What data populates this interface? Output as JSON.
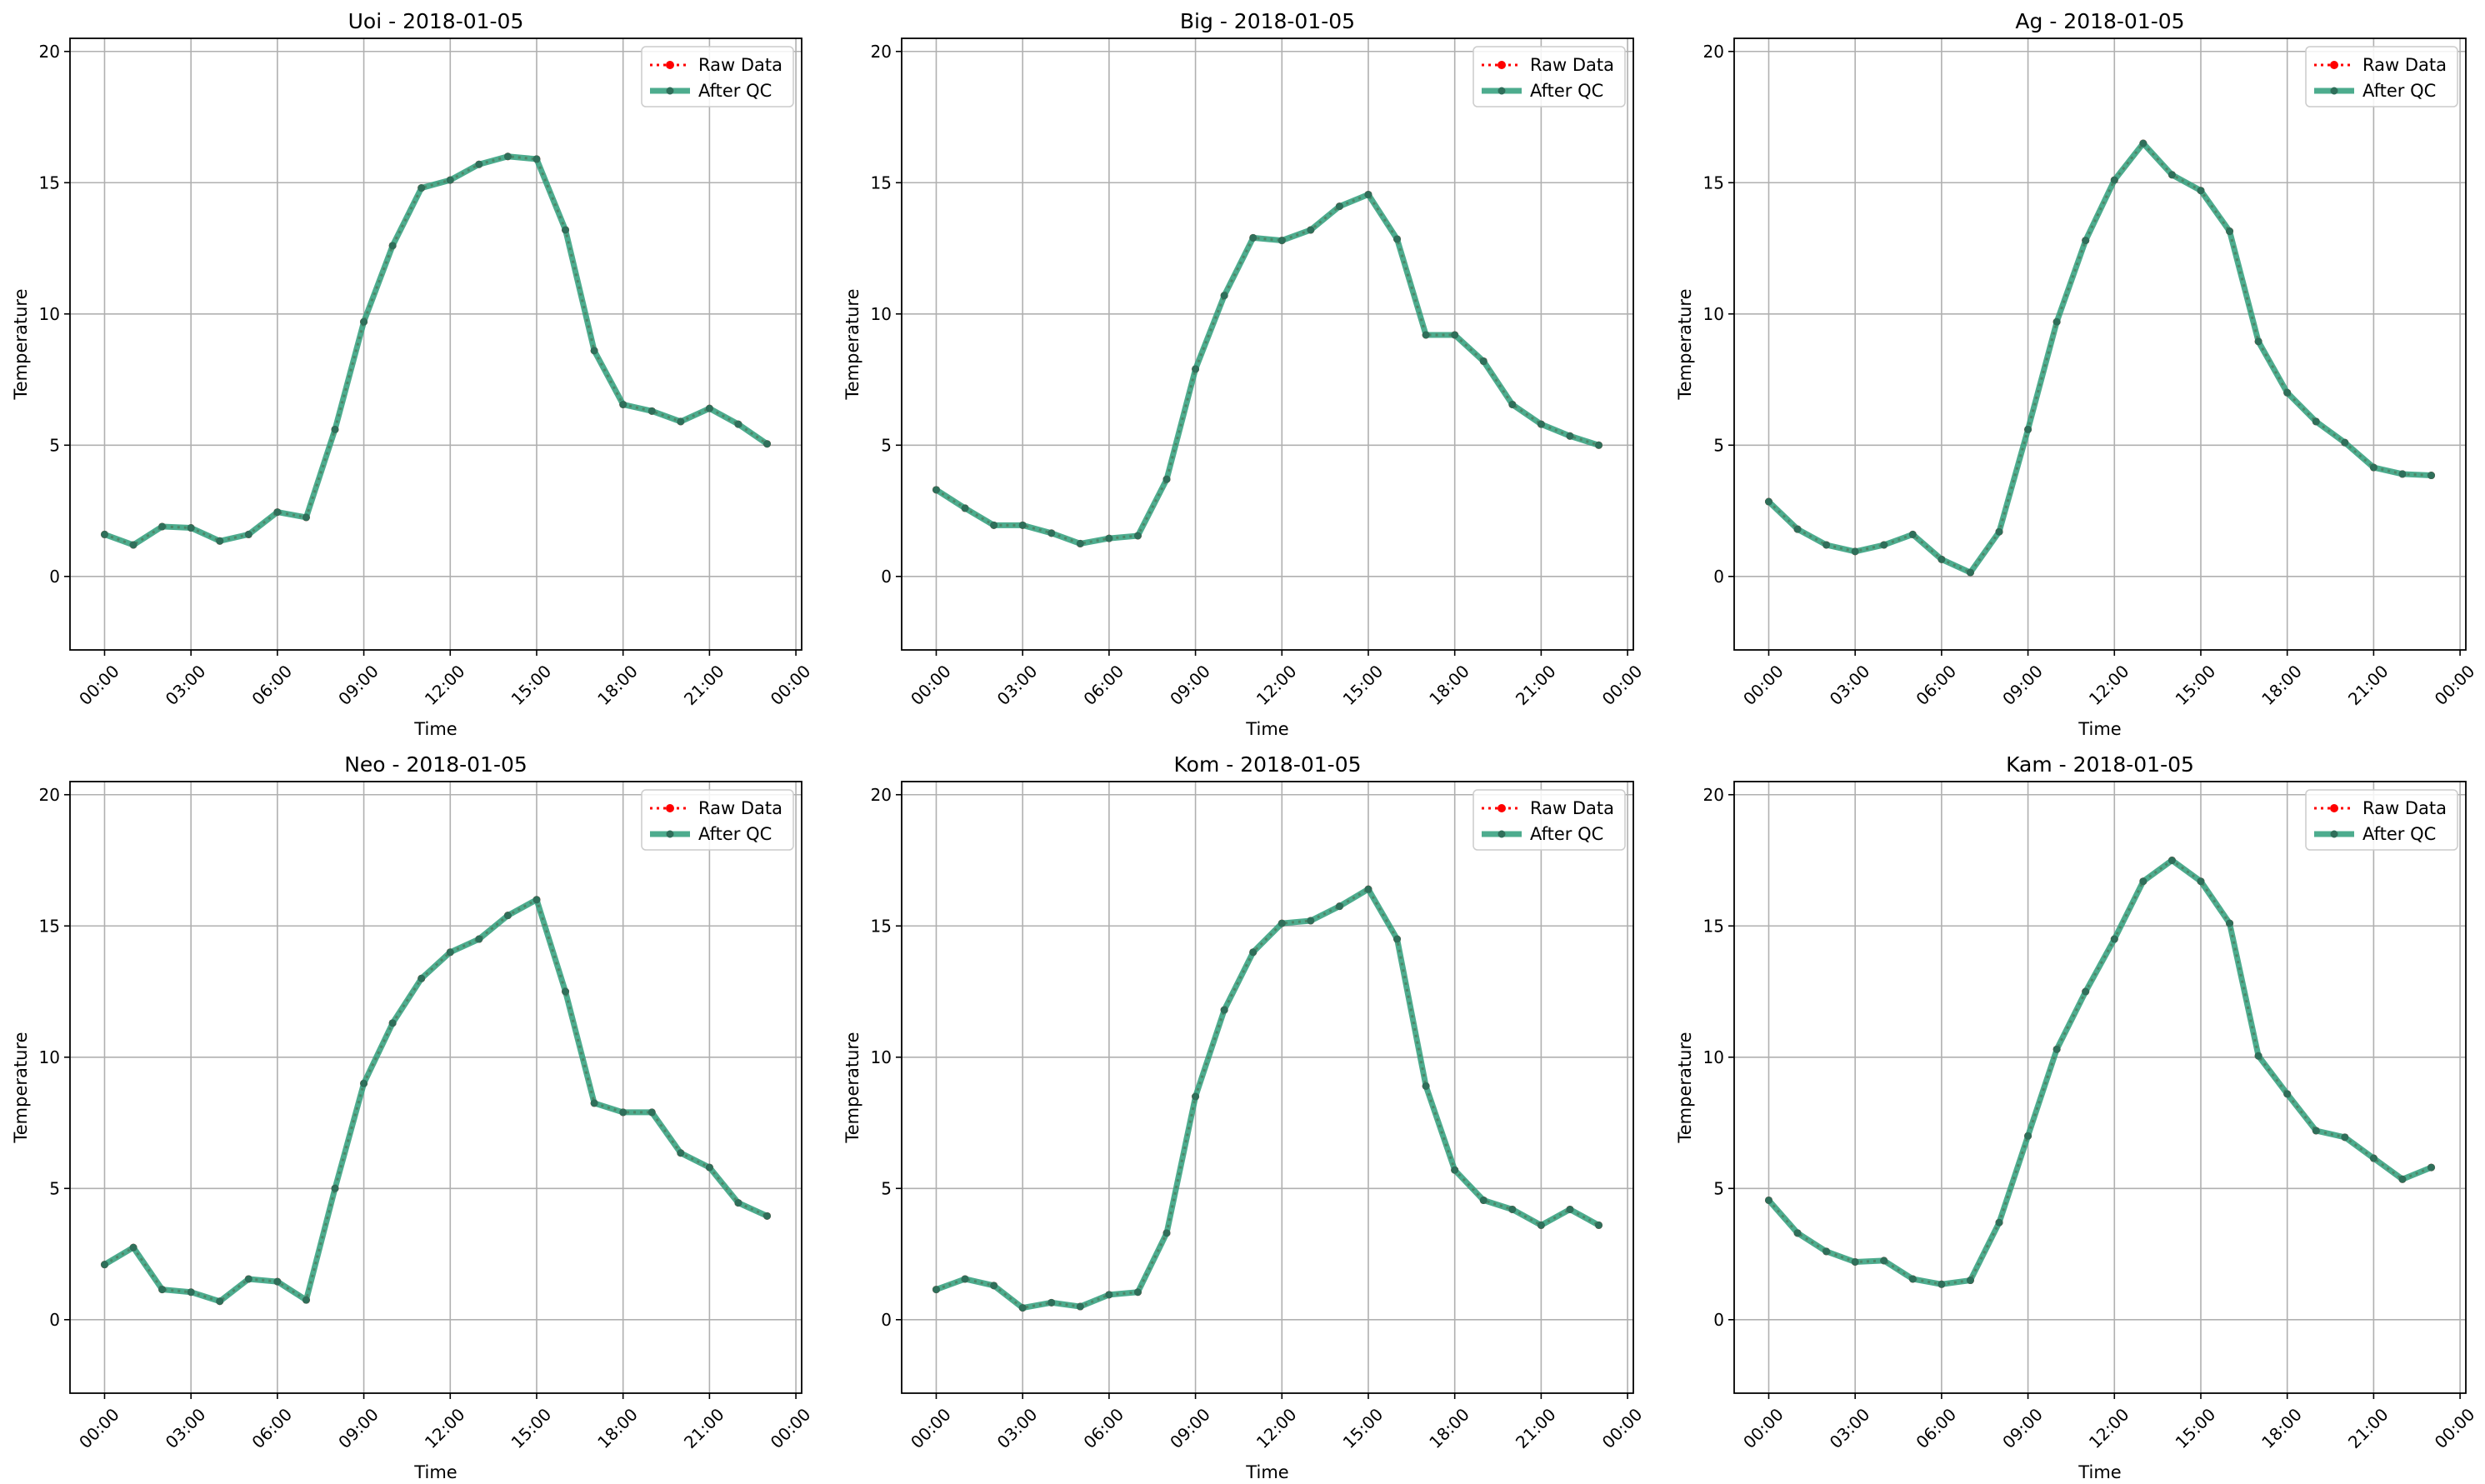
{
  "figure": {
    "background": "#ffffff"
  },
  "colors": {
    "raw": "#ff0000",
    "qc": "#2e9e7a",
    "qc_marker": "#2f6f5a",
    "grid": "#b0b0b0",
    "axis": "#000000"
  },
  "chart_data": [
    {
      "type": "line",
      "title": "Uoi - 2018-01-05",
      "xlabel": "Time",
      "ylabel": "Temperature",
      "x": [
        "00:00",
        "01:00",
        "02:00",
        "03:00",
        "04:00",
        "05:00",
        "06:00",
        "07:00",
        "08:00",
        "09:00",
        "10:00",
        "11:00",
        "12:00",
        "13:00",
        "14:00",
        "15:00",
        "16:00",
        "17:00",
        "18:00",
        "19:00",
        "20:00",
        "21:00",
        "22:00",
        "23:00"
      ],
      "xticks": [
        "00:00",
        "03:00",
        "06:00",
        "09:00",
        "12:00",
        "15:00",
        "18:00",
        "21:00",
        "00:00"
      ],
      "xlim_hours": [
        -1.2,
        24.2
      ],
      "ylim": [
        -2.8,
        20.5
      ],
      "yticks": [
        0,
        5,
        10,
        15,
        20
      ],
      "grid": true,
      "legend_position": "top-right",
      "legend": [
        "Raw Data",
        "After QC"
      ],
      "series": [
        {
          "name": "Raw Data",
          "values": [
            1.6,
            1.2,
            1.9,
            1.85,
            1.35,
            1.6,
            2.45,
            2.25,
            5.6,
            9.7,
            12.6,
            14.8,
            15.1,
            15.7,
            16.0,
            15.9,
            13.2,
            8.6,
            6.55,
            6.3,
            5.9,
            6.4,
            5.8,
            5.05
          ]
        },
        {
          "name": "After QC",
          "values": [
            1.6,
            1.2,
            1.9,
            1.85,
            1.35,
            1.6,
            2.45,
            2.25,
            5.6,
            9.7,
            12.6,
            14.8,
            15.1,
            15.7,
            16.0,
            15.9,
            13.2,
            8.6,
            6.55,
            6.3,
            5.9,
            6.4,
            5.8,
            5.05
          ]
        }
      ]
    },
    {
      "type": "line",
      "title": "Big - 2018-01-05",
      "xlabel": "Time",
      "ylabel": "Temperature",
      "x": [
        "00:00",
        "01:00",
        "02:00",
        "03:00",
        "04:00",
        "05:00",
        "06:00",
        "07:00",
        "08:00",
        "09:00",
        "10:00",
        "11:00",
        "12:00",
        "13:00",
        "14:00",
        "15:00",
        "16:00",
        "17:00",
        "18:00",
        "19:00",
        "20:00",
        "21:00",
        "22:00",
        "23:00"
      ],
      "xticks": [
        "00:00",
        "03:00",
        "06:00",
        "09:00",
        "12:00",
        "15:00",
        "18:00",
        "21:00",
        "00:00"
      ],
      "xlim_hours": [
        -1.2,
        24.2
      ],
      "ylim": [
        -2.8,
        20.5
      ],
      "yticks": [
        0,
        5,
        10,
        15,
        20
      ],
      "grid": true,
      "legend_position": "top-right",
      "legend": [
        "Raw Data",
        "After QC"
      ],
      "series": [
        {
          "name": "Raw Data",
          "values": [
            3.3,
            2.6,
            1.95,
            1.95,
            1.65,
            1.25,
            1.45,
            1.55,
            3.7,
            7.9,
            10.7,
            12.9,
            12.8,
            13.2,
            14.1,
            14.55,
            12.85,
            9.2,
            9.2,
            8.2,
            6.55,
            5.8,
            5.35,
            5.0
          ]
        },
        {
          "name": "After QC",
          "values": [
            3.3,
            2.6,
            1.95,
            1.95,
            1.65,
            1.25,
            1.45,
            1.55,
            3.7,
            7.9,
            10.7,
            12.9,
            12.8,
            13.2,
            14.1,
            14.55,
            12.85,
            9.2,
            9.2,
            8.2,
            6.55,
            5.8,
            5.35,
            5.0
          ]
        }
      ]
    },
    {
      "type": "line",
      "title": "Ag - 2018-01-05",
      "xlabel": "Time",
      "ylabel": "Temperature",
      "x": [
        "00:00",
        "01:00",
        "02:00",
        "03:00",
        "04:00",
        "05:00",
        "06:00",
        "07:00",
        "08:00",
        "09:00",
        "10:00",
        "11:00",
        "12:00",
        "13:00",
        "14:00",
        "15:00",
        "16:00",
        "17:00",
        "18:00",
        "19:00",
        "20:00",
        "21:00",
        "22:00",
        "23:00"
      ],
      "xticks": [
        "00:00",
        "03:00",
        "06:00",
        "09:00",
        "12:00",
        "15:00",
        "18:00",
        "21:00",
        "00:00"
      ],
      "xlim_hours": [
        -1.2,
        24.2
      ],
      "ylim": [
        -2.8,
        20.5
      ],
      "yticks": [
        0,
        5,
        10,
        15,
        20
      ],
      "grid": true,
      "legend_position": "top-right",
      "legend": [
        "Raw Data",
        "After QC"
      ],
      "series": [
        {
          "name": "Raw Data",
          "values": [
            2.85,
            1.8,
            1.2,
            0.95,
            1.2,
            1.6,
            0.65,
            0.15,
            1.7,
            5.6,
            9.7,
            12.8,
            15.1,
            16.5,
            15.3,
            14.7,
            13.15,
            8.95,
            7.0,
            5.9,
            5.1,
            4.15,
            3.9,
            3.85
          ]
        },
        {
          "name": "After QC",
          "values": [
            2.85,
            1.8,
            1.2,
            0.95,
            1.2,
            1.6,
            0.65,
            0.15,
            1.7,
            5.6,
            9.7,
            12.8,
            15.1,
            16.5,
            15.3,
            14.7,
            13.15,
            8.95,
            7.0,
            5.9,
            5.1,
            4.15,
            3.9,
            3.85
          ]
        }
      ]
    },
    {
      "type": "line",
      "title": "Neo - 2018-01-05",
      "xlabel": "Time",
      "ylabel": "Temperature",
      "x": [
        "00:00",
        "01:00",
        "02:00",
        "03:00",
        "04:00",
        "05:00",
        "06:00",
        "07:00",
        "08:00",
        "09:00",
        "10:00",
        "11:00",
        "12:00",
        "13:00",
        "14:00",
        "15:00",
        "16:00",
        "17:00",
        "18:00",
        "19:00",
        "20:00",
        "21:00",
        "22:00",
        "23:00"
      ],
      "xticks": [
        "00:00",
        "03:00",
        "06:00",
        "09:00",
        "12:00",
        "15:00",
        "18:00",
        "21:00",
        "00:00"
      ],
      "xlim_hours": [
        -1.2,
        24.2
      ],
      "ylim": [
        -2.8,
        20.5
      ],
      "yticks": [
        0,
        5,
        10,
        15,
        20
      ],
      "grid": true,
      "legend_position": "top-right",
      "legend": [
        "Raw Data",
        "After QC"
      ],
      "series": [
        {
          "name": "Raw Data",
          "values": [
            2.1,
            2.75,
            1.15,
            1.05,
            0.7,
            1.55,
            1.45,
            0.75,
            5.0,
            9.0,
            11.3,
            13.0,
            14.0,
            14.5,
            15.4,
            16.0,
            12.5,
            8.25,
            7.9,
            7.9,
            6.35,
            5.8,
            4.45,
            3.95
          ]
        },
        {
          "name": "After QC",
          "values": [
            2.1,
            2.75,
            1.15,
            1.05,
            0.7,
            1.55,
            1.45,
            0.75,
            5.0,
            9.0,
            11.3,
            13.0,
            14.0,
            14.5,
            15.4,
            16.0,
            12.5,
            8.25,
            7.9,
            7.9,
            6.35,
            5.8,
            4.45,
            3.95
          ]
        }
      ]
    },
    {
      "type": "line",
      "title": "Kom - 2018-01-05",
      "xlabel": "Time",
      "ylabel": "Temperature",
      "x": [
        "00:00",
        "01:00",
        "02:00",
        "03:00",
        "04:00",
        "05:00",
        "06:00",
        "07:00",
        "08:00",
        "09:00",
        "10:00",
        "11:00",
        "12:00",
        "13:00",
        "14:00",
        "15:00",
        "16:00",
        "17:00",
        "18:00",
        "19:00",
        "20:00",
        "21:00",
        "22:00",
        "23:00"
      ],
      "xticks": [
        "00:00",
        "03:00",
        "06:00",
        "09:00",
        "12:00",
        "15:00",
        "18:00",
        "21:00",
        "00:00"
      ],
      "xlim_hours": [
        -1.2,
        24.2
      ],
      "ylim": [
        -2.8,
        20.5
      ],
      "yticks": [
        0,
        5,
        10,
        15,
        20
      ],
      "grid": true,
      "legend_position": "top-right",
      "legend": [
        "Raw Data",
        "After QC"
      ],
      "series": [
        {
          "name": "Raw Data",
          "values": [
            1.15,
            1.55,
            1.3,
            0.45,
            0.65,
            0.5,
            0.95,
            1.05,
            3.3,
            8.5,
            11.8,
            14.0,
            15.1,
            15.2,
            15.75,
            16.4,
            14.5,
            8.9,
            5.7,
            4.55,
            4.2,
            3.6,
            4.2,
            3.6
          ]
        },
        {
          "name": "After QC",
          "values": [
            1.15,
            1.55,
            1.3,
            0.45,
            0.65,
            0.5,
            0.95,
            1.05,
            3.3,
            8.5,
            11.8,
            14.0,
            15.1,
            15.2,
            15.75,
            16.4,
            14.5,
            8.9,
            5.7,
            4.55,
            4.2,
            3.6,
            4.2,
            3.6
          ]
        }
      ]
    },
    {
      "type": "line",
      "title": "Kam - 2018-01-05",
      "xlabel": "Time",
      "ylabel": "Temperature",
      "x": [
        "00:00",
        "01:00",
        "02:00",
        "03:00",
        "04:00",
        "05:00",
        "06:00",
        "07:00",
        "08:00",
        "09:00",
        "10:00",
        "11:00",
        "12:00",
        "13:00",
        "14:00",
        "15:00",
        "16:00",
        "17:00",
        "18:00",
        "19:00",
        "20:00",
        "21:00",
        "22:00",
        "23:00"
      ],
      "xticks": [
        "00:00",
        "03:00",
        "06:00",
        "09:00",
        "12:00",
        "15:00",
        "18:00",
        "21:00",
        "00:00"
      ],
      "xlim_hours": [
        -1.2,
        24.2
      ],
      "ylim": [
        -2.8,
        20.5
      ],
      "yticks": [
        0,
        5,
        10,
        15,
        20
      ],
      "grid": true,
      "legend_position": "top-right",
      "legend": [
        "Raw Data",
        "After QC"
      ],
      "series": [
        {
          "name": "Raw Data",
          "values": [
            4.55,
            3.3,
            2.6,
            2.2,
            2.25,
            1.55,
            1.35,
            1.5,
            3.7,
            7.0,
            10.3,
            12.5,
            14.5,
            16.7,
            17.5,
            16.7,
            15.1,
            10.05,
            8.6,
            7.2,
            6.95,
            6.15,
            5.35,
            5.8
          ]
        },
        {
          "name": "After QC",
          "values": [
            4.55,
            3.3,
            2.6,
            2.2,
            2.25,
            1.55,
            1.35,
            1.5,
            3.7,
            7.0,
            10.3,
            12.5,
            14.5,
            16.7,
            17.5,
            16.7,
            15.1,
            10.05,
            8.6,
            7.2,
            6.95,
            6.15,
            5.35,
            5.8
          ]
        }
      ]
    }
  ]
}
